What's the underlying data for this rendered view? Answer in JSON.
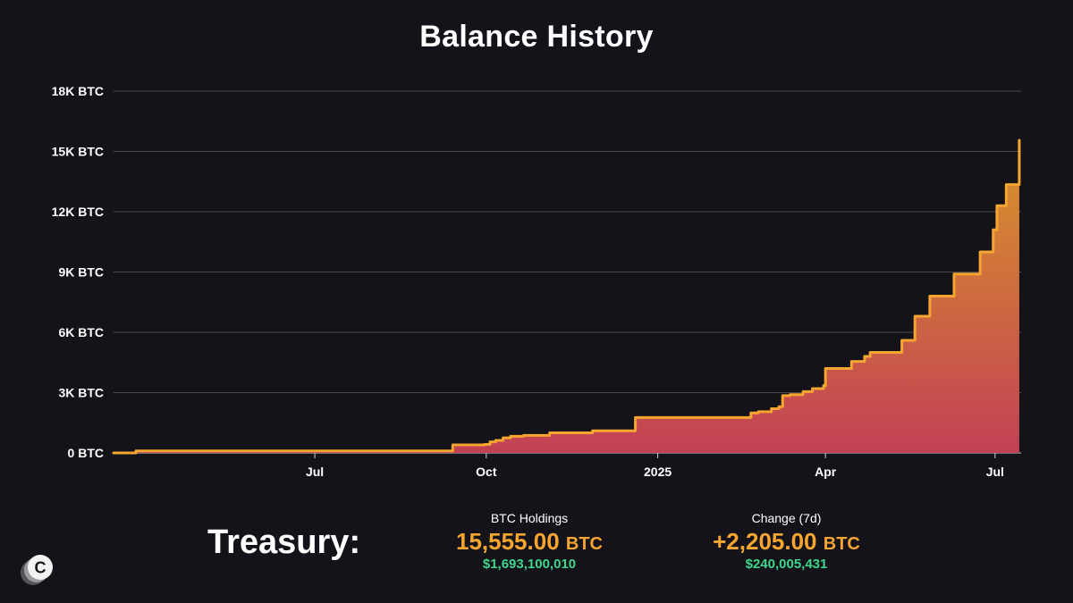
{
  "title": "Balance History",
  "colors": {
    "background": "#141319",
    "line": "#f6a531",
    "fill_top": "#d9952a",
    "fill_bottom": "#c24155",
    "grid": "#4a4950",
    "accent_green": "#3fd58b"
  },
  "chart_data": {
    "type": "area",
    "title": "Balance History",
    "xlabel": "",
    "ylabel": "",
    "interpolation": "step",
    "x_range": [
      "2024-03-15",
      "2025-07-15"
    ],
    "ylim": [
      0,
      18000
    ],
    "y_ticks": [
      0,
      3000,
      6000,
      9000,
      12000,
      15000,
      18000
    ],
    "y_tick_labels": [
      "0 BTC",
      "3K BTC",
      "6K BTC",
      "9K BTC",
      "12K BTC",
      "15K BTC",
      "18K BTC"
    ],
    "x_ticks": [
      "2024-07-01",
      "2024-10-01",
      "2025-01-01",
      "2025-04-01",
      "2025-07-01"
    ],
    "x_tick_labels": [
      "Jul",
      "Oct",
      "2025",
      "Apr",
      "Jul"
    ],
    "grid": true,
    "legend": "none",
    "series": [
      {
        "points": [
          [
            "2024-03-15",
            0
          ],
          [
            "2024-03-27",
            100
          ],
          [
            "2024-09-13",
            400
          ],
          [
            "2024-09-30",
            420
          ],
          [
            "2024-10-03",
            550
          ],
          [
            "2024-10-06",
            620
          ],
          [
            "2024-10-10",
            750
          ],
          [
            "2024-10-14",
            830
          ],
          [
            "2024-10-21",
            870
          ],
          [
            "2024-11-04",
            1000
          ],
          [
            "2024-11-27",
            1100
          ],
          [
            "2024-12-20",
            1760
          ],
          [
            "2025-02-20",
            1990
          ],
          [
            "2025-02-24",
            2050
          ],
          [
            "2025-03-03",
            2200
          ],
          [
            "2025-03-07",
            2300
          ],
          [
            "2025-03-09",
            2850
          ],
          [
            "2025-03-13",
            2900
          ],
          [
            "2025-03-20",
            3050
          ],
          [
            "2025-03-25",
            3200
          ],
          [
            "2025-03-31",
            3350
          ],
          [
            "2025-04-01",
            4200
          ],
          [
            "2025-04-15",
            4550
          ],
          [
            "2025-04-22",
            4800
          ],
          [
            "2025-04-25",
            5000
          ],
          [
            "2025-05-12",
            5600
          ],
          [
            "2025-05-19",
            6800
          ],
          [
            "2025-05-27",
            7800
          ],
          [
            "2025-06-09",
            8900
          ],
          [
            "2025-06-23",
            10000
          ],
          [
            "2025-06-30",
            11100
          ],
          [
            "2025-07-02",
            12300
          ],
          [
            "2025-07-07",
            13350
          ],
          [
            "2025-07-14",
            15555
          ]
        ]
      }
    ]
  },
  "summary": {
    "label": "Treasury:",
    "holdings": {
      "heading": "BTC Holdings",
      "value": "15,555.00",
      "unit": "BTC",
      "usd": "$1,693,100,010"
    },
    "change": {
      "heading": "Change (7d)",
      "value": "+2,205.00",
      "unit": "BTC",
      "usd": "$240,005,431"
    }
  },
  "logo": {
    "icon": "c-coin-logo-icon",
    "letter": "C"
  }
}
